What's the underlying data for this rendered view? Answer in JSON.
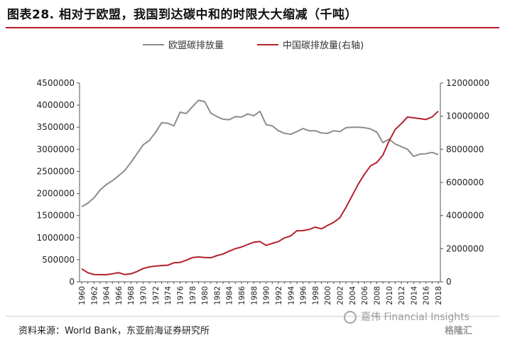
{
  "header": {
    "title": "图表28. 相对于欧盟，我国到达碳中和的时限大大缩减（千吨）"
  },
  "footer": {
    "source": "资料来源：World Bank，东亚前海证券研究所"
  },
  "watermark": {
    "text": "嘉伟 Financial Insights",
    "logo": "格隆汇"
  },
  "colors": {
    "eu": "#8c8c8c",
    "china": "#b5202e"
  },
  "chart_data": {
    "type": "line",
    "legend_position": "top",
    "x": [
      1960,
      1961,
      1962,
      1963,
      1964,
      1965,
      1966,
      1967,
      1968,
      1969,
      1970,
      1971,
      1972,
      1973,
      1974,
      1975,
      1976,
      1977,
      1978,
      1979,
      1980,
      1981,
      1982,
      1983,
      1984,
      1985,
      1986,
      1987,
      1988,
      1989,
      1990,
      1991,
      1992,
      1993,
      1994,
      1995,
      1996,
      1997,
      1998,
      1999,
      2000,
      2001,
      2002,
      2003,
      2004,
      2005,
      2006,
      2007,
      2008,
      2009,
      2010,
      2011,
      2012,
      2013,
      2014,
      2015,
      2016,
      2017,
      2018
    ],
    "x_tick_labels": [
      "1960",
      "1962",
      "1964",
      "1966",
      "1968",
      "1970",
      "1972",
      "1974",
      "1976",
      "1978",
      "1980",
      "1982",
      "1984",
      "1986",
      "1988",
      "1990",
      "1992",
      "1994",
      "1996",
      "1998",
      "2000",
      "2002",
      "2004",
      "2006",
      "2008",
      "2010",
      "2012",
      "2014",
      "2016",
      "2018"
    ],
    "y_left": {
      "min": 0,
      "max": 4500000,
      "ticks": [
        "0",
        "500000",
        "1000000",
        "1500000",
        "2000000",
        "2500000",
        "3000000",
        "3500000",
        "4000000",
        "4500000"
      ]
    },
    "y_right": {
      "min": 0,
      "max": 12000000,
      "ticks": [
        "0",
        "2000000",
        "4000000",
        "6000000",
        "8000000",
        "10000000",
        "12000000"
      ]
    },
    "series": [
      {
        "name": "欧盟碳排放量",
        "axis": "left",
        "values": [
          1700000,
          1780000,
          1900000,
          2080000,
          2200000,
          2290000,
          2400000,
          2520000,
          2700000,
          2900000,
          3100000,
          3200000,
          3380000,
          3600000,
          3590000,
          3530000,
          3840000,
          3810000,
          3960000,
          4110000,
          4080000,
          3820000,
          3740000,
          3680000,
          3670000,
          3740000,
          3730000,
          3800000,
          3760000,
          3860000,
          3560000,
          3530000,
          3420000,
          3360000,
          3340000,
          3400000,
          3470000,
          3420000,
          3420000,
          3370000,
          3360000,
          3420000,
          3400000,
          3490000,
          3500000,
          3500000,
          3490000,
          3460000,
          3390000,
          3150000,
          3230000,
          3120000,
          3060000,
          3000000,
          2840000,
          2890000,
          2900000,
          2930000,
          2880000
        ]
      },
      {
        "name": "中国碳排放量(右轴)",
        "axis": "right",
        "values": [
          780000,
          550000,
          440000,
          430000,
          430000,
          480000,
          550000,
          440000,
          480000,
          620000,
          800000,
          900000,
          950000,
          980000,
          1000000,
          1150000,
          1170000,
          1300000,
          1460000,
          1500000,
          1470000,
          1450000,
          1580000,
          1680000,
          1850000,
          2000000,
          2100000,
          2250000,
          2390000,
          2430000,
          2200000,
          2320000,
          2430000,
          2650000,
          2770000,
          3080000,
          3090000,
          3160000,
          3300000,
          3200000,
          3400000,
          3590000,
          3870000,
          4500000,
          5200000,
          5900000,
          6500000,
          7000000,
          7200000,
          7650000,
          8500000,
          9200000,
          9550000,
          9950000,
          9900000,
          9850000,
          9800000,
          9950000,
          10300000
        ]
      }
    ]
  }
}
